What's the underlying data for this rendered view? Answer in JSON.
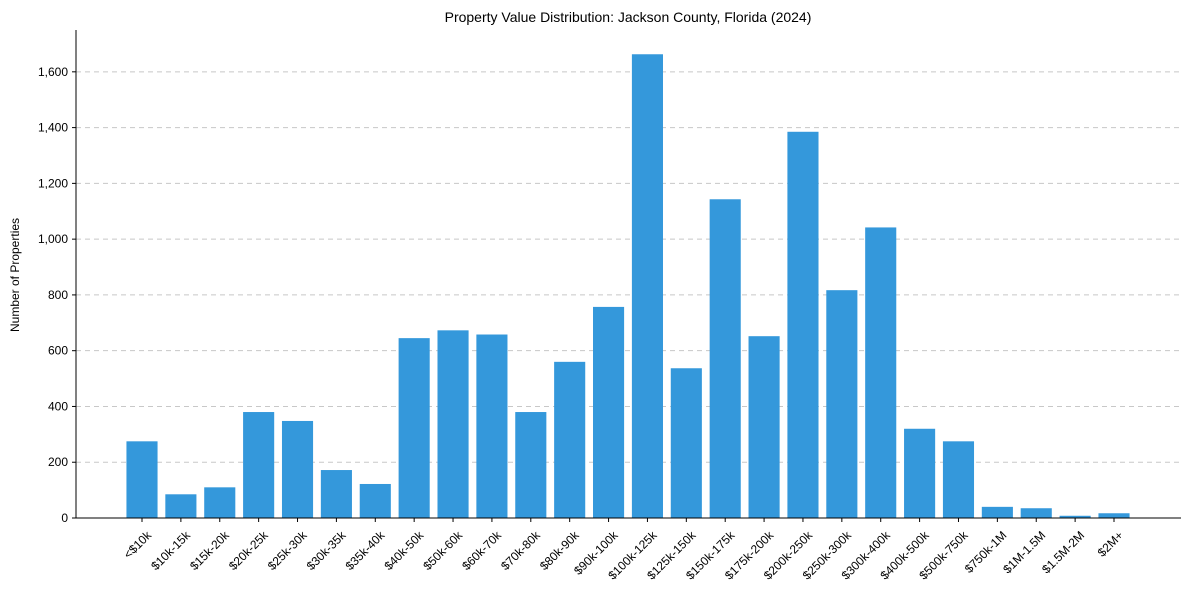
{
  "chart_data": {
    "type": "bar",
    "title": "Property Value Distribution: Jackson County, Florida (2024)",
    "xlabel": "",
    "ylabel": "Number of Properties",
    "ylim": [
      0,
      1750
    ],
    "yticks": [
      0,
      200,
      400,
      600,
      800,
      1000,
      1200,
      1400,
      1600
    ],
    "ytick_labels": [
      "0",
      "200",
      "400",
      "600",
      "800",
      "1,000",
      "1,200",
      "1,400",
      "1,600"
    ],
    "grid": "y-dashed",
    "bar_color": "#3498db",
    "categories": [
      "<$10k",
      "$10k-15k",
      "$15k-20k",
      "$20k-25k",
      "$25k-30k",
      "$30k-35k",
      "$35k-40k",
      "$40k-50k",
      "$50k-60k",
      "$60k-70k",
      "$70k-80k",
      "$80k-90k",
      "$90k-100k",
      "$100k-125k",
      "$125k-150k",
      "$150k-175k",
      "$175k-200k",
      "$200k-250k",
      "$250k-300k",
      "$300k-400k",
      "$400k-500k",
      "$500k-750k",
      "$750k-1M",
      "$1M-1.5M",
      "$1.5M-2M",
      "$2M+"
    ],
    "values": [
      275,
      85,
      110,
      380,
      348,
      172,
      122,
      645,
      673,
      658,
      380,
      560,
      757,
      1663,
      537,
      1143,
      652,
      1385,
      817,
      1042,
      320,
      275,
      40,
      35,
      8,
      17
    ]
  }
}
